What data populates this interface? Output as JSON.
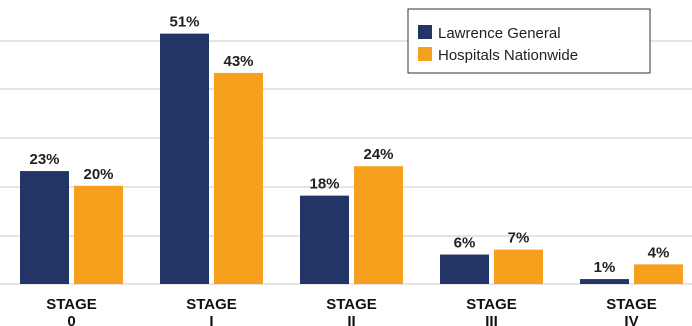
{
  "chart_data": {
    "type": "bar",
    "title": "",
    "xlabel": "",
    "ylabel": "",
    "ylim": [
      0,
      55
    ],
    "grid": true,
    "legend_position": "top-right",
    "categories": [
      {
        "line1": "STAGE",
        "line2": "0"
      },
      {
        "line1": "STAGE",
        "line2": "I"
      },
      {
        "line1": "STAGE",
        "line2": "II"
      },
      {
        "line1": "STAGE",
        "line2": "III"
      },
      {
        "line1": "STAGE",
        "line2": "IV"
      }
    ],
    "series": [
      {
        "name": "Lawrence General",
        "color": "#233466",
        "values": [
          23,
          51,
          18,
          6,
          1
        ],
        "labels": [
          "23%",
          "51%",
          "18%",
          "6%",
          "1%"
        ]
      },
      {
        "name": "Hospitals Nationwide",
        "color": "#f7a01e",
        "values": [
          20,
          43,
          24,
          7,
          4
        ],
        "labels": [
          "20%",
          "43%",
          "24%",
          "7%",
          "4%"
        ]
      }
    ]
  }
}
